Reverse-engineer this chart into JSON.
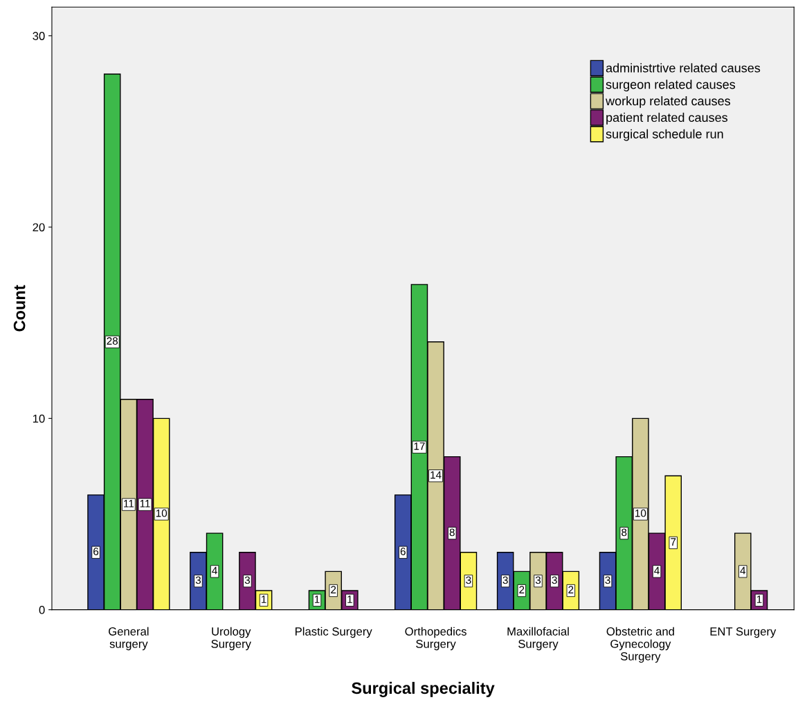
{
  "chart_data": {
    "type": "bar",
    "xlabel": "Surgical speciality",
    "ylabel": "Count",
    "categories": [
      "General\nsurgery",
      "Urology\nSurgery",
      "Plastic Surgery",
      "Orthopedics\nSurgery",
      "Maxillofacial\nSurgery",
      "Obstetric and\nGynecology\nSurgery",
      "ENT Surgery"
    ],
    "series": [
      {
        "name": "administrtive related causes",
        "color": "#3b4ea6",
        "values": [
          6,
          3,
          null,
          6,
          3,
          3,
          null
        ]
      },
      {
        "name": "surgeon related causes",
        "color": "#3db94a",
        "values": [
          28,
          4,
          1,
          17,
          2,
          8,
          null
        ]
      },
      {
        "name": "workup related causes",
        "color": "#d3cc98",
        "values": [
          11,
          null,
          2,
          14,
          3,
          10,
          4
        ]
      },
      {
        "name": "patient related causes",
        "color": "#7c2271",
        "values": [
          11,
          3,
          1,
          8,
          3,
          4,
          1
        ]
      },
      {
        "name": "surgical schedule run",
        "color": "#fbf45d",
        "values": [
          10,
          1,
          null,
          3,
          2,
          7,
          null
        ]
      }
    ],
    "ylim": [
      0,
      31.5
    ],
    "yticks": [
      0,
      10,
      20,
      30
    ],
    "grid": false,
    "legend": "top right",
    "data_labels": true
  }
}
